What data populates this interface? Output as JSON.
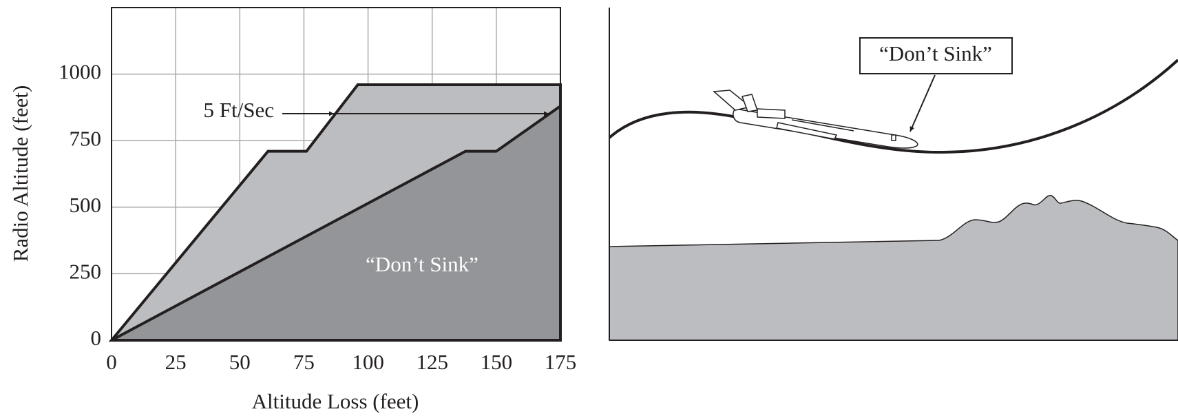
{
  "chart_data": {
    "type": "area",
    "x_label": "Altitude Loss (feet)",
    "y_label": "Radio Altitude (feet)",
    "series": [
      {
        "color": "#bcbdc0",
        "x": [
          0,
          61,
          76,
          96,
          175
        ],
        "values": [
          0,
          710,
          710,
          960,
          960
        ]
      },
      {
        "color": "#939598",
        "x": [
          0,
          138,
          150,
          175
        ],
        "values": [
          0,
          710,
          710,
          880
        ]
      }
    ],
    "xlim": [
      0,
      175
    ],
    "xticks": [
      0,
      25,
      50,
      75,
      100,
      125,
      150,
      175
    ],
    "ylim": [
      0,
      1250
    ],
    "yticks": [
      0,
      250,
      500,
      750,
      1000
    ],
    "grid": true,
    "annotations": [
      "5 Ft/Sec",
      "“Don’t Sink”"
    ]
  },
  "diagram": {
    "label": "“Don’t Sink”"
  }
}
